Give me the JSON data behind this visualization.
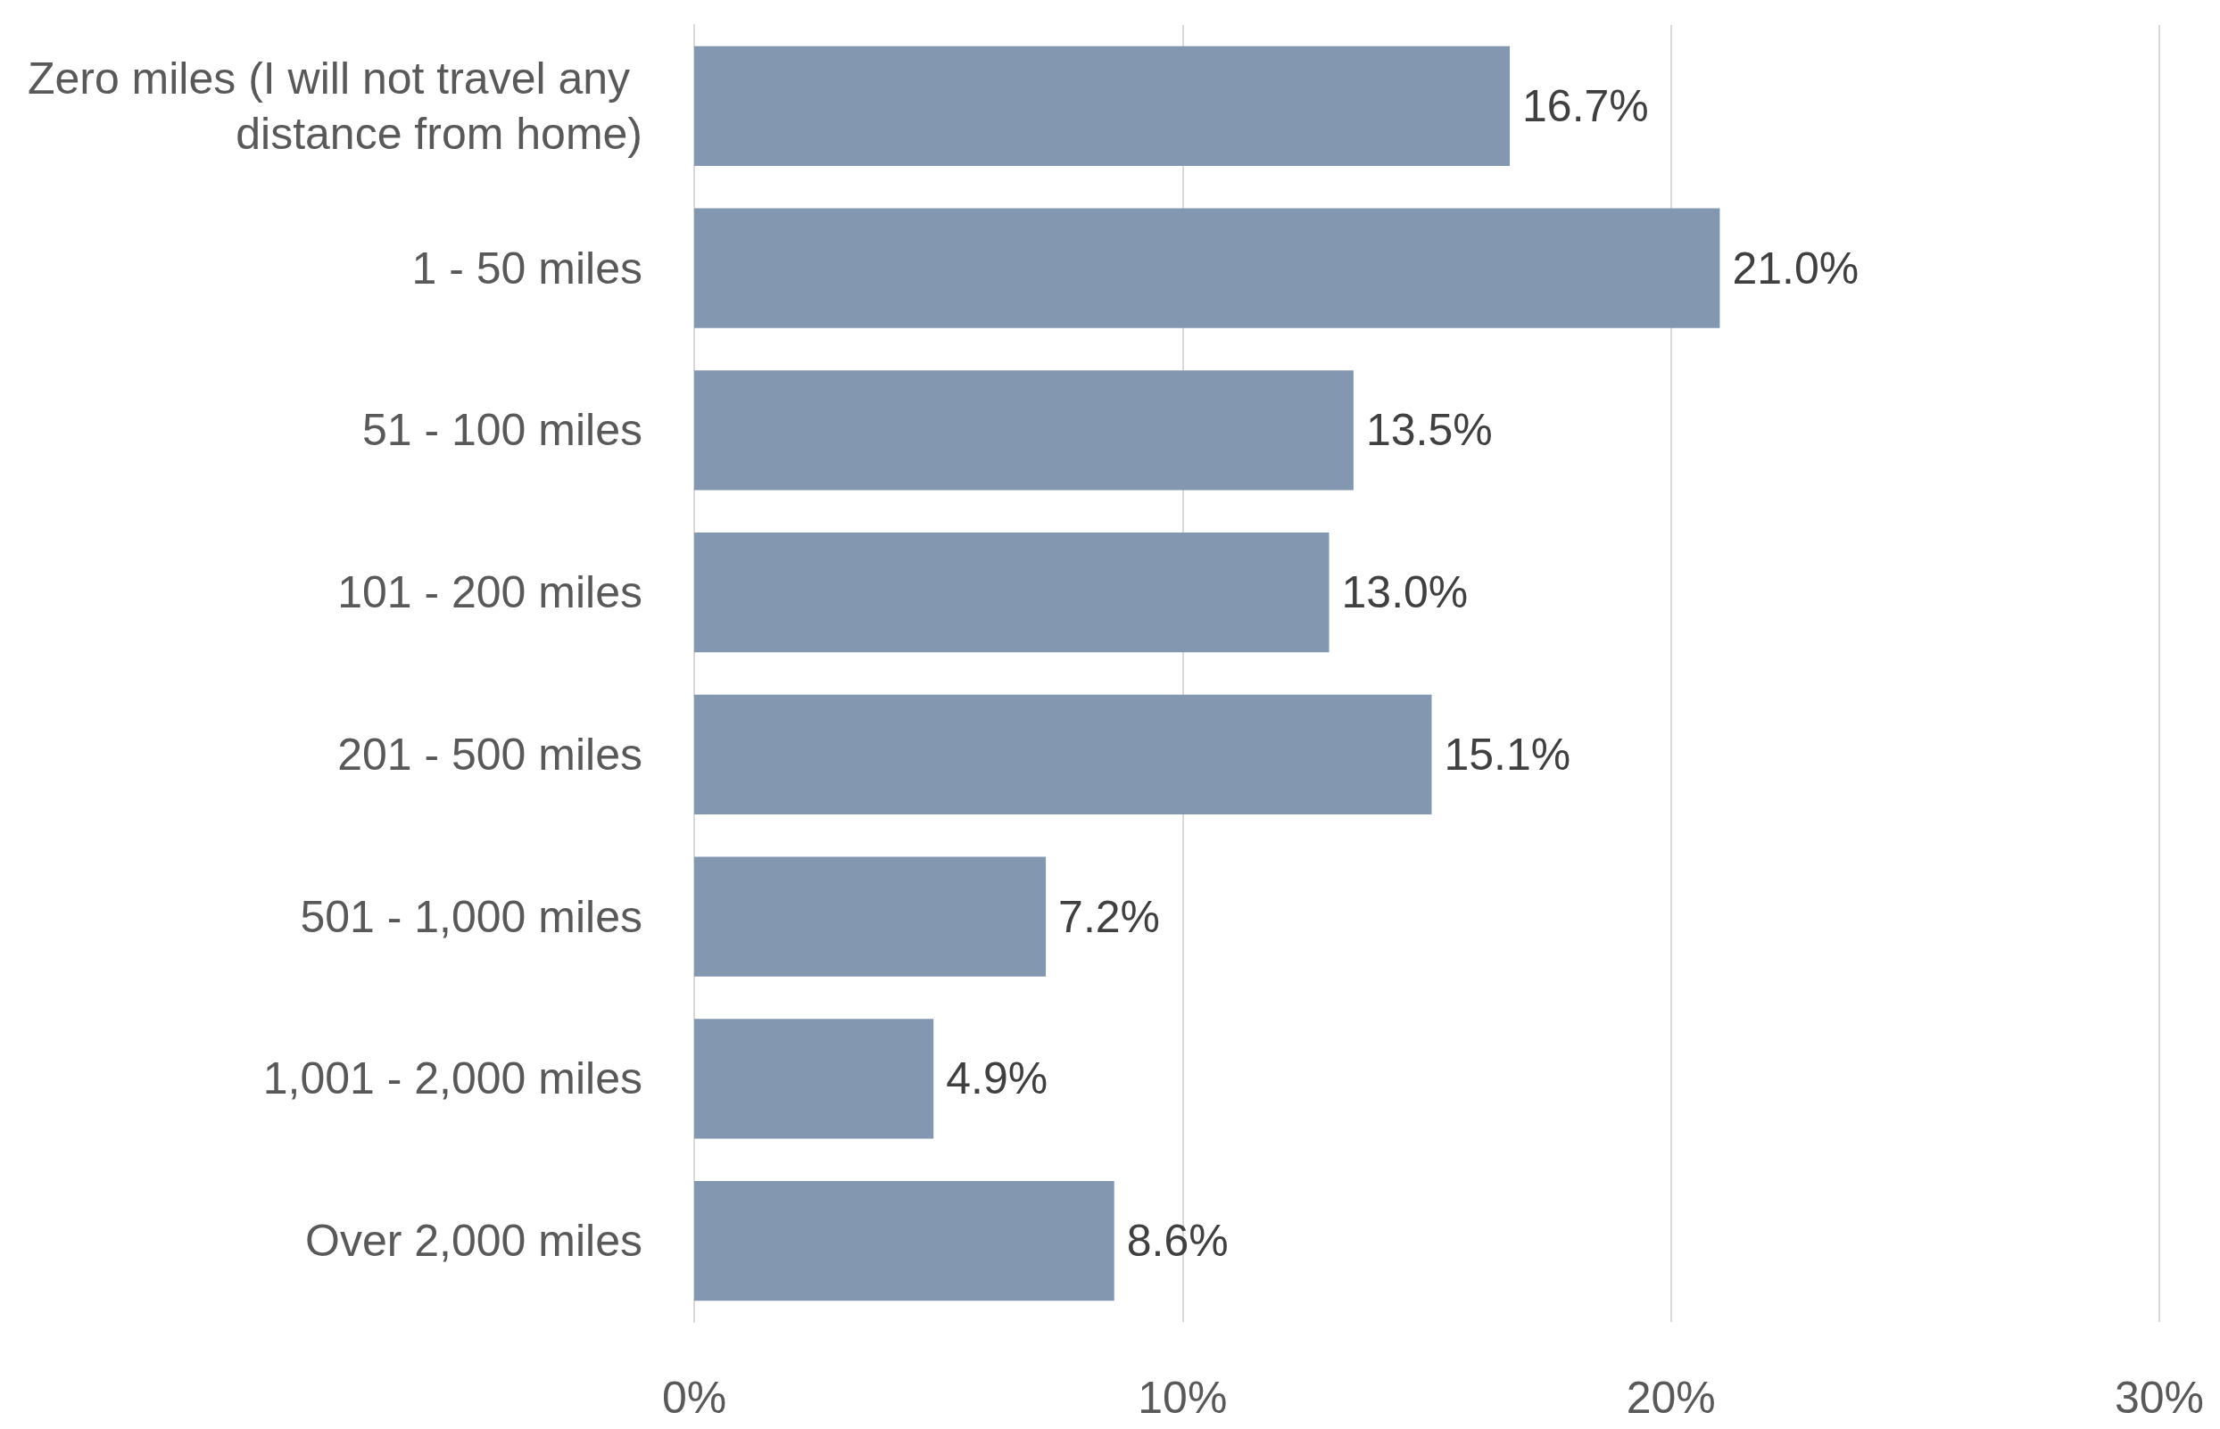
{
  "chart_data": {
    "type": "bar",
    "orientation": "horizontal",
    "categories": [
      "Zero miles (I will not travel any distance from home)",
      "1 - 50 miles",
      "51 - 100 miles",
      "101 - 200 miles",
      "201 - 500 miles",
      "501 - 1,000 miles",
      "1,001 - 2,000 miles",
      "Over 2,000 miles"
    ],
    "values": [
      16.7,
      21.0,
      13.5,
      13.0,
      15.1,
      7.2,
      4.9,
      8.6
    ],
    "value_labels": [
      "16.7%",
      "21.0%",
      "13.5%",
      "13.0%",
      "15.1%",
      "7.2%",
      "4.9%",
      "8.6%"
    ],
    "color": "#8497b0",
    "xlim": [
      0,
      30
    ],
    "xticks": [
      {
        "value": 0,
        "label": "0%"
      },
      {
        "value": 10,
        "label": "10%"
      },
      {
        "value": 20,
        "label": "20%"
      },
      {
        "value": 30,
        "label": "30%"
      }
    ],
    "grid": "x"
  }
}
